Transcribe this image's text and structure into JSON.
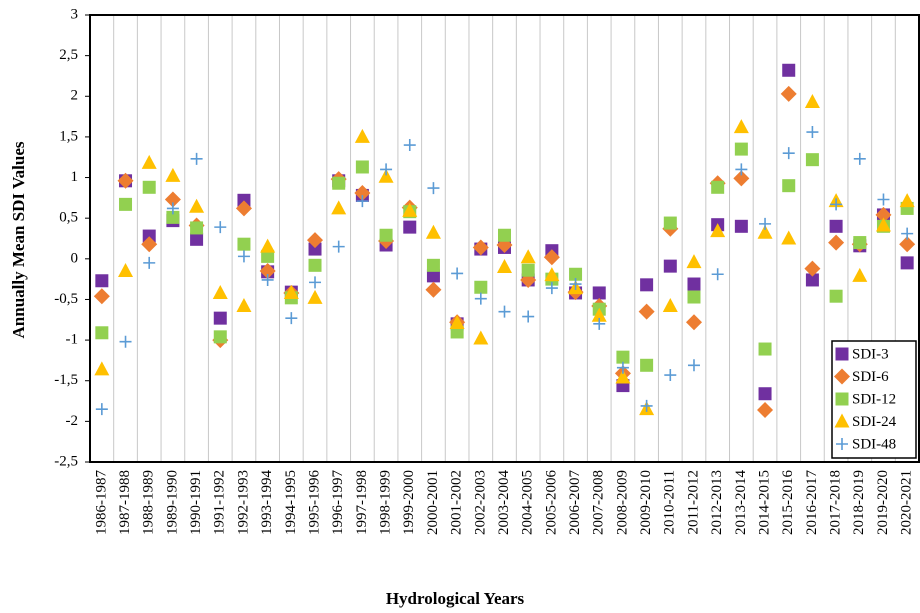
{
  "chart_data": {
    "type": "scatter",
    "x_label": "Hydrological Years",
    "y_label": "Annually Mean SDI Values",
    "categories": [
      "1986-1987",
      "1987-1988",
      "1988-1989",
      "1989-1990",
      "1990-1991",
      "1991-1992",
      "1992-1993",
      "1993-1994",
      "1994-1995",
      "1995-1996",
      "1996-1997",
      "1997-1998",
      "1998-1999",
      "1999-2000",
      "2000-2001",
      "2001-2002",
      "2002-2003",
      "2003-2004",
      "2004-2005",
      "2005-2006",
      "2006-2007",
      "2007-2008",
      "2008-2009",
      "2009-2010",
      "2010-2011",
      "2011-2012",
      "2012-2013",
      "2013-2014",
      "2014-2015",
      "2015-2016",
      "2016-2017",
      "2017-2018",
      "2018-2019",
      "2019-2020",
      "2020-2021"
    ],
    "ylim": [
      -2.5,
      3
    ],
    "yticks": [
      {
        "value": -2.5,
        "label": "-2,5"
      },
      -2,
      {
        "value": -1.5,
        "label": "-1,5"
      },
      -1,
      {
        "value": -0.5,
        "label": "-0,5"
      },
      0,
      {
        "value": 0.5,
        "label": "0,5"
      },
      1,
      {
        "value": 1.5,
        "label": "1,5"
      },
      2,
      {
        "value": 2.5,
        "label": "2,5"
      },
      3
    ],
    "grid": true,
    "legend": "lower right",
    "series": [
      {
        "name": "SDI-3",
        "color": "#7030a0",
        "marker": "square",
        "values": [
          -0.27,
          0.96,
          0.28,
          0.47,
          0.24,
          -0.73,
          0.72,
          -0.16,
          -0.41,
          0.12,
          0.96,
          0.78,
          0.17,
          0.39,
          -0.21,
          -0.8,
          0.12,
          0.14,
          -0.26,
          0.1,
          -0.42,
          -0.42,
          -1.56,
          -0.32,
          -0.09,
          -0.31,
          0.42,
          0.4,
          -1.66,
          2.32,
          -0.26,
          0.4,
          0.16,
          0.54,
          -0.05
        ]
      },
      {
        "name": "SDI-6",
        "color": "#ed7d31",
        "marker": "diamond",
        "values": [
          -0.46,
          0.96,
          0.18,
          0.73,
          0.41,
          -1.0,
          0.62,
          -0.15,
          -0.42,
          0.23,
          0.98,
          0.81,
          0.22,
          0.63,
          -0.38,
          -0.78,
          0.14,
          0.17,
          -0.26,
          0.02,
          -0.41,
          -0.58,
          -1.41,
          -0.65,
          0.37,
          -0.78,
          0.93,
          0.99,
          -1.86,
          2.03,
          -0.12,
          0.2,
          0.18,
          0.54,
          0.18
        ]
      },
      {
        "name": "SDI-12",
        "color": "#92d050",
        "marker": "square",
        "values": [
          -0.91,
          0.67,
          0.88,
          0.51,
          0.38,
          -0.96,
          0.18,
          0.03,
          -0.48,
          -0.08,
          0.93,
          1.13,
          0.29,
          0.58,
          -0.08,
          -0.9,
          -0.35,
          0.29,
          -0.14,
          -0.25,
          -0.19,
          -0.62,
          -1.21,
          -1.31,
          0.44,
          -0.47,
          0.88,
          1.35,
          -1.11,
          0.9,
          1.22,
          -0.46,
          0.2,
          0.4,
          0.62
        ]
      },
      {
        "name": "SDI-24",
        "color": "#ffc000",
        "marker": "triangle",
        "values": [
          -1.36,
          -0.15,
          1.18,
          1.02,
          0.64,
          -0.42,
          -0.58,
          0.15,
          -0.42,
          -0.48,
          0.62,
          1.5,
          1.01,
          0.59,
          0.32,
          -0.79,
          -0.98,
          -0.1,
          0.02,
          -0.2,
          -0.36,
          -0.7,
          -1.46,
          -1.85,
          -0.58,
          -0.04,
          0.34,
          1.62,
          0.32,
          0.25,
          1.93,
          0.71,
          -0.21,
          0.41,
          0.71
        ]
      },
      {
        "name": "SDI-48",
        "color": "#5b9bd5",
        "marker": "plus",
        "values": [
          -1.85,
          -1.02,
          -0.05,
          0.62,
          1.23,
          0.39,
          0.03,
          -0.26,
          -0.73,
          -0.29,
          0.15,
          0.71,
          1.1,
          1.4,
          0.87,
          -0.18,
          -0.49,
          -0.65,
          -0.71,
          -0.36,
          -0.31,
          -0.8,
          -1.34,
          -1.81,
          -1.43,
          -1.31,
          -0.19,
          1.1,
          0.43,
          1.3,
          1.56,
          0.67,
          1.23,
          0.73,
          0.31
        ]
      }
    ]
  }
}
